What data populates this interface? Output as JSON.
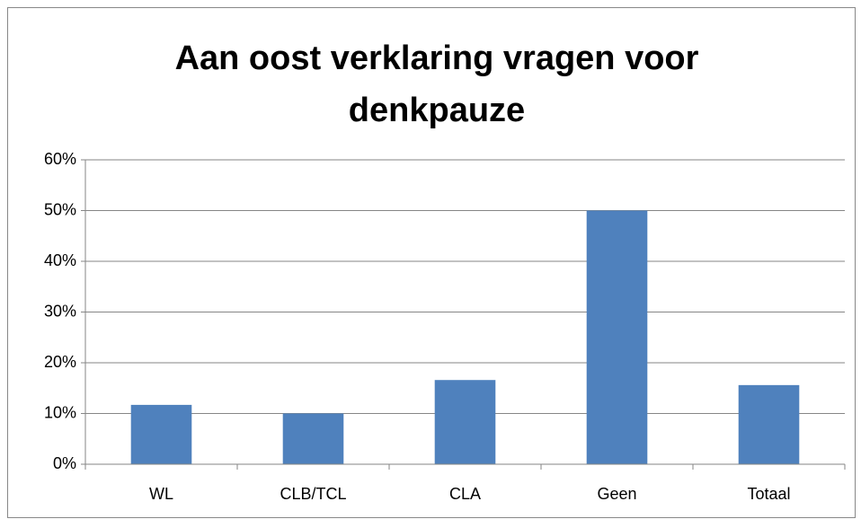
{
  "chart_data": {
    "type": "bar",
    "title": "Aan oost verklaring vragen voor denkpauze",
    "categories": [
      "WL",
      "CLB/TCL",
      "CLA",
      "Geen",
      "Totaal"
    ],
    "values": [
      11.7,
      10,
      16.6,
      50,
      15.6
    ],
    "color": "#4f81bd",
    "ylim": [
      0,
      60
    ],
    "yticks": [
      {
        "value": 0,
        "label": "0%"
      },
      {
        "value": 10,
        "label": "10%"
      },
      {
        "value": 20,
        "label": "20%"
      },
      {
        "value": 30,
        "label": "30%"
      },
      {
        "value": 40,
        "label": "40%"
      },
      {
        "value": 50,
        "label": "50%"
      },
      {
        "value": 60,
        "label": "60%"
      }
    ],
    "grid": true
  }
}
